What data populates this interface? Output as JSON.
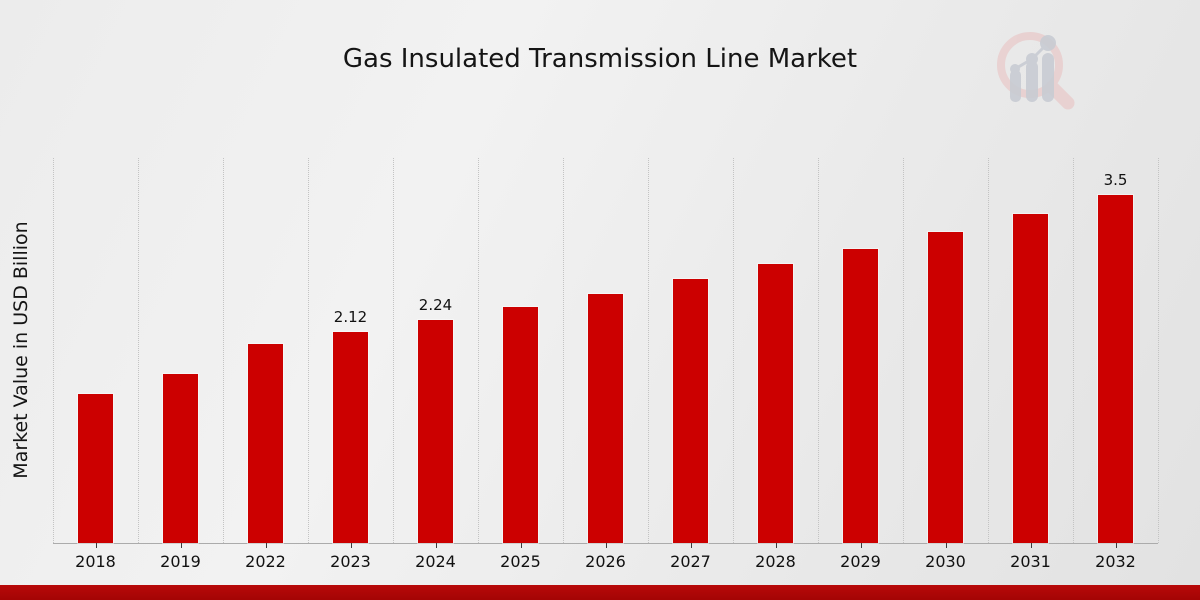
{
  "page": {
    "title": "Gas Insulated Transmission Line Market"
  },
  "chart_data": {
    "type": "bar",
    "title": "Gas Insulated Transmission Line Market",
    "xlabel": "",
    "ylabel": "Market Value in USD Billion",
    "categories": [
      "2018",
      "2019",
      "2022",
      "2023",
      "2024",
      "2025",
      "2026",
      "2027",
      "2028",
      "2029",
      "2030",
      "2031",
      "2032"
    ],
    "values": [
      1.5,
      1.7,
      2.0,
      2.12,
      2.24,
      2.37,
      2.5,
      2.65,
      2.8,
      2.96,
      3.13,
      3.31,
      3.5
    ],
    "point_labels": [
      "",
      "",
      "",
      "2.12",
      "2.24",
      "",
      "",
      "",
      "",
      "",
      "",
      "",
      "3.5"
    ],
    "ylim": [
      0,
      3.87
    ],
    "bar_color": "#cc0000",
    "grid": "vertical dotted gridlines between categories, no horizontal gridlines, no y tick labels",
    "legend": "none"
  },
  "branding": {
    "logo_icon": "magnifier-bar-chart-logo",
    "logo_ring_color": "#e8caca",
    "logo_bars_color": "#c8ccd3"
  },
  "footer": {
    "accent_bar_color": "#b00606"
  }
}
